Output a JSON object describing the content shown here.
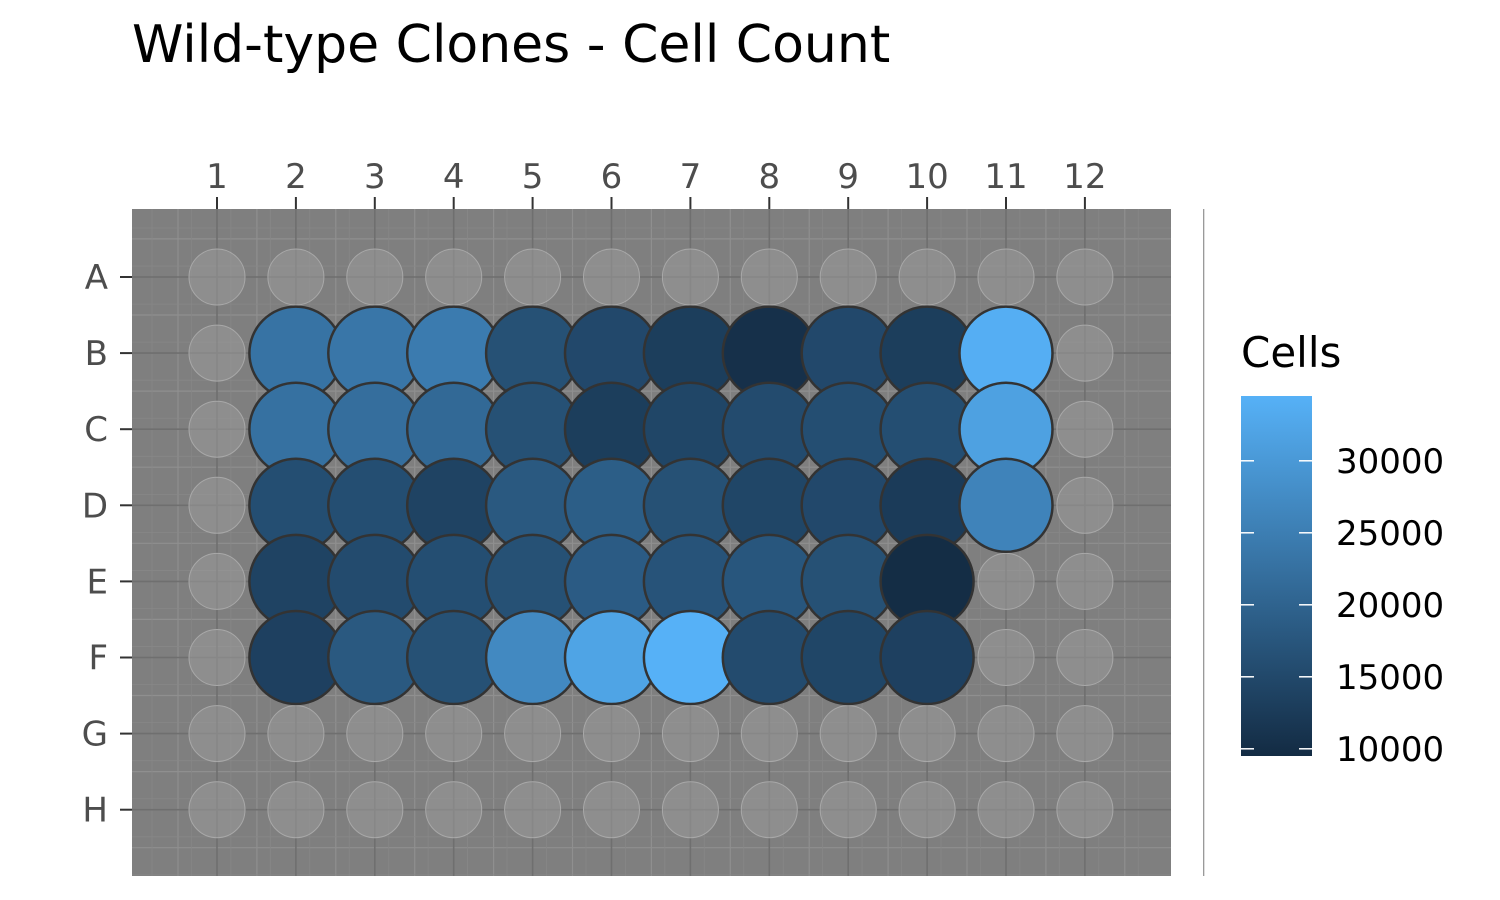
{
  "chart_data": {
    "type": "heatmap",
    "title": "Wild-type Clones - Cell Count",
    "columns": [
      "1",
      "2",
      "3",
      "4",
      "5",
      "6",
      "7",
      "8",
      "9",
      "10",
      "11",
      "12"
    ],
    "rows": [
      "A",
      "B",
      "C",
      "D",
      "E",
      "F",
      "G",
      "H"
    ],
    "x_axis_position": "top",
    "legend": {
      "title": "Cells",
      "position": "right",
      "ticks": [
        10000,
        15000,
        20000,
        25000,
        30000
      ],
      "range": [
        9500,
        34500
      ],
      "colors": {
        "low": "#132b43",
        "high": "#56b1f7"
      }
    },
    "panel_background": "#7f7f7f",
    "empty_well_color": "#9a9a9a",
    "cells": [
      {
        "row": "B",
        "col": 2,
        "value": 23000
      },
      {
        "row": "B",
        "col": 3,
        "value": 23500
      },
      {
        "row": "B",
        "col": 4,
        "value": 24500
      },
      {
        "row": "B",
        "col": 5,
        "value": 16500
      },
      {
        "row": "B",
        "col": 6,
        "value": 15000
      },
      {
        "row": "B",
        "col": 7,
        "value": 13000
      },
      {
        "row": "B",
        "col": 8,
        "value": 10500
      },
      {
        "row": "B",
        "col": 9,
        "value": 15000
      },
      {
        "row": "B",
        "col": 10,
        "value": 13000
      },
      {
        "row": "B",
        "col": 11,
        "value": 34000
      },
      {
        "row": "C",
        "col": 2,
        "value": 22500
      },
      {
        "row": "C",
        "col": 3,
        "value": 22000
      },
      {
        "row": "C",
        "col": 4,
        "value": 21000
      },
      {
        "row": "C",
        "col": 5,
        "value": 16500
      },
      {
        "row": "C",
        "col": 6,
        "value": 13000
      },
      {
        "row": "C",
        "col": 7,
        "value": 14500
      },
      {
        "row": "C",
        "col": 8,
        "value": 15500
      },
      {
        "row": "C",
        "col": 9,
        "value": 16000
      },
      {
        "row": "C",
        "col": 10,
        "value": 16000
      },
      {
        "row": "C",
        "col": 11,
        "value": 31500
      },
      {
        "row": "D",
        "col": 2,
        "value": 16000
      },
      {
        "row": "D",
        "col": 3,
        "value": 16000
      },
      {
        "row": "D",
        "col": 4,
        "value": 14000
      },
      {
        "row": "D",
        "col": 5,
        "value": 18000
      },
      {
        "row": "D",
        "col": 6,
        "value": 19000
      },
      {
        "row": "D",
        "col": 7,
        "value": 16500
      },
      {
        "row": "D",
        "col": 8,
        "value": 14500
      },
      {
        "row": "D",
        "col": 9,
        "value": 15000
      },
      {
        "row": "D",
        "col": 10,
        "value": 12500
      },
      {
        "row": "D",
        "col": 11,
        "value": 26000
      },
      {
        "row": "E",
        "col": 2,
        "value": 14000
      },
      {
        "row": "E",
        "col": 3,
        "value": 15500
      },
      {
        "row": "E",
        "col": 4,
        "value": 16000
      },
      {
        "row": "E",
        "col": 5,
        "value": 16500
      },
      {
        "row": "E",
        "col": 6,
        "value": 18500
      },
      {
        "row": "E",
        "col": 7,
        "value": 17000
      },
      {
        "row": "E",
        "col": 8,
        "value": 17500
      },
      {
        "row": "E",
        "col": 9,
        "value": 16500
      },
      {
        "row": "E",
        "col": 10,
        "value": 9800
      },
      {
        "row": "F",
        "col": 2,
        "value": 13500
      },
      {
        "row": "F",
        "col": 3,
        "value": 18000
      },
      {
        "row": "F",
        "col": 4,
        "value": 16500
      },
      {
        "row": "F",
        "col": 5,
        "value": 27000
      },
      {
        "row": "F",
        "col": 6,
        "value": 32000
      },
      {
        "row": "F",
        "col": 7,
        "value": 34500
      },
      {
        "row": "F",
        "col": 8,
        "value": 15500
      },
      {
        "row": "F",
        "col": 9,
        "value": 14500
      },
      {
        "row": "F",
        "col": 10,
        "value": 13500
      }
    ]
  }
}
